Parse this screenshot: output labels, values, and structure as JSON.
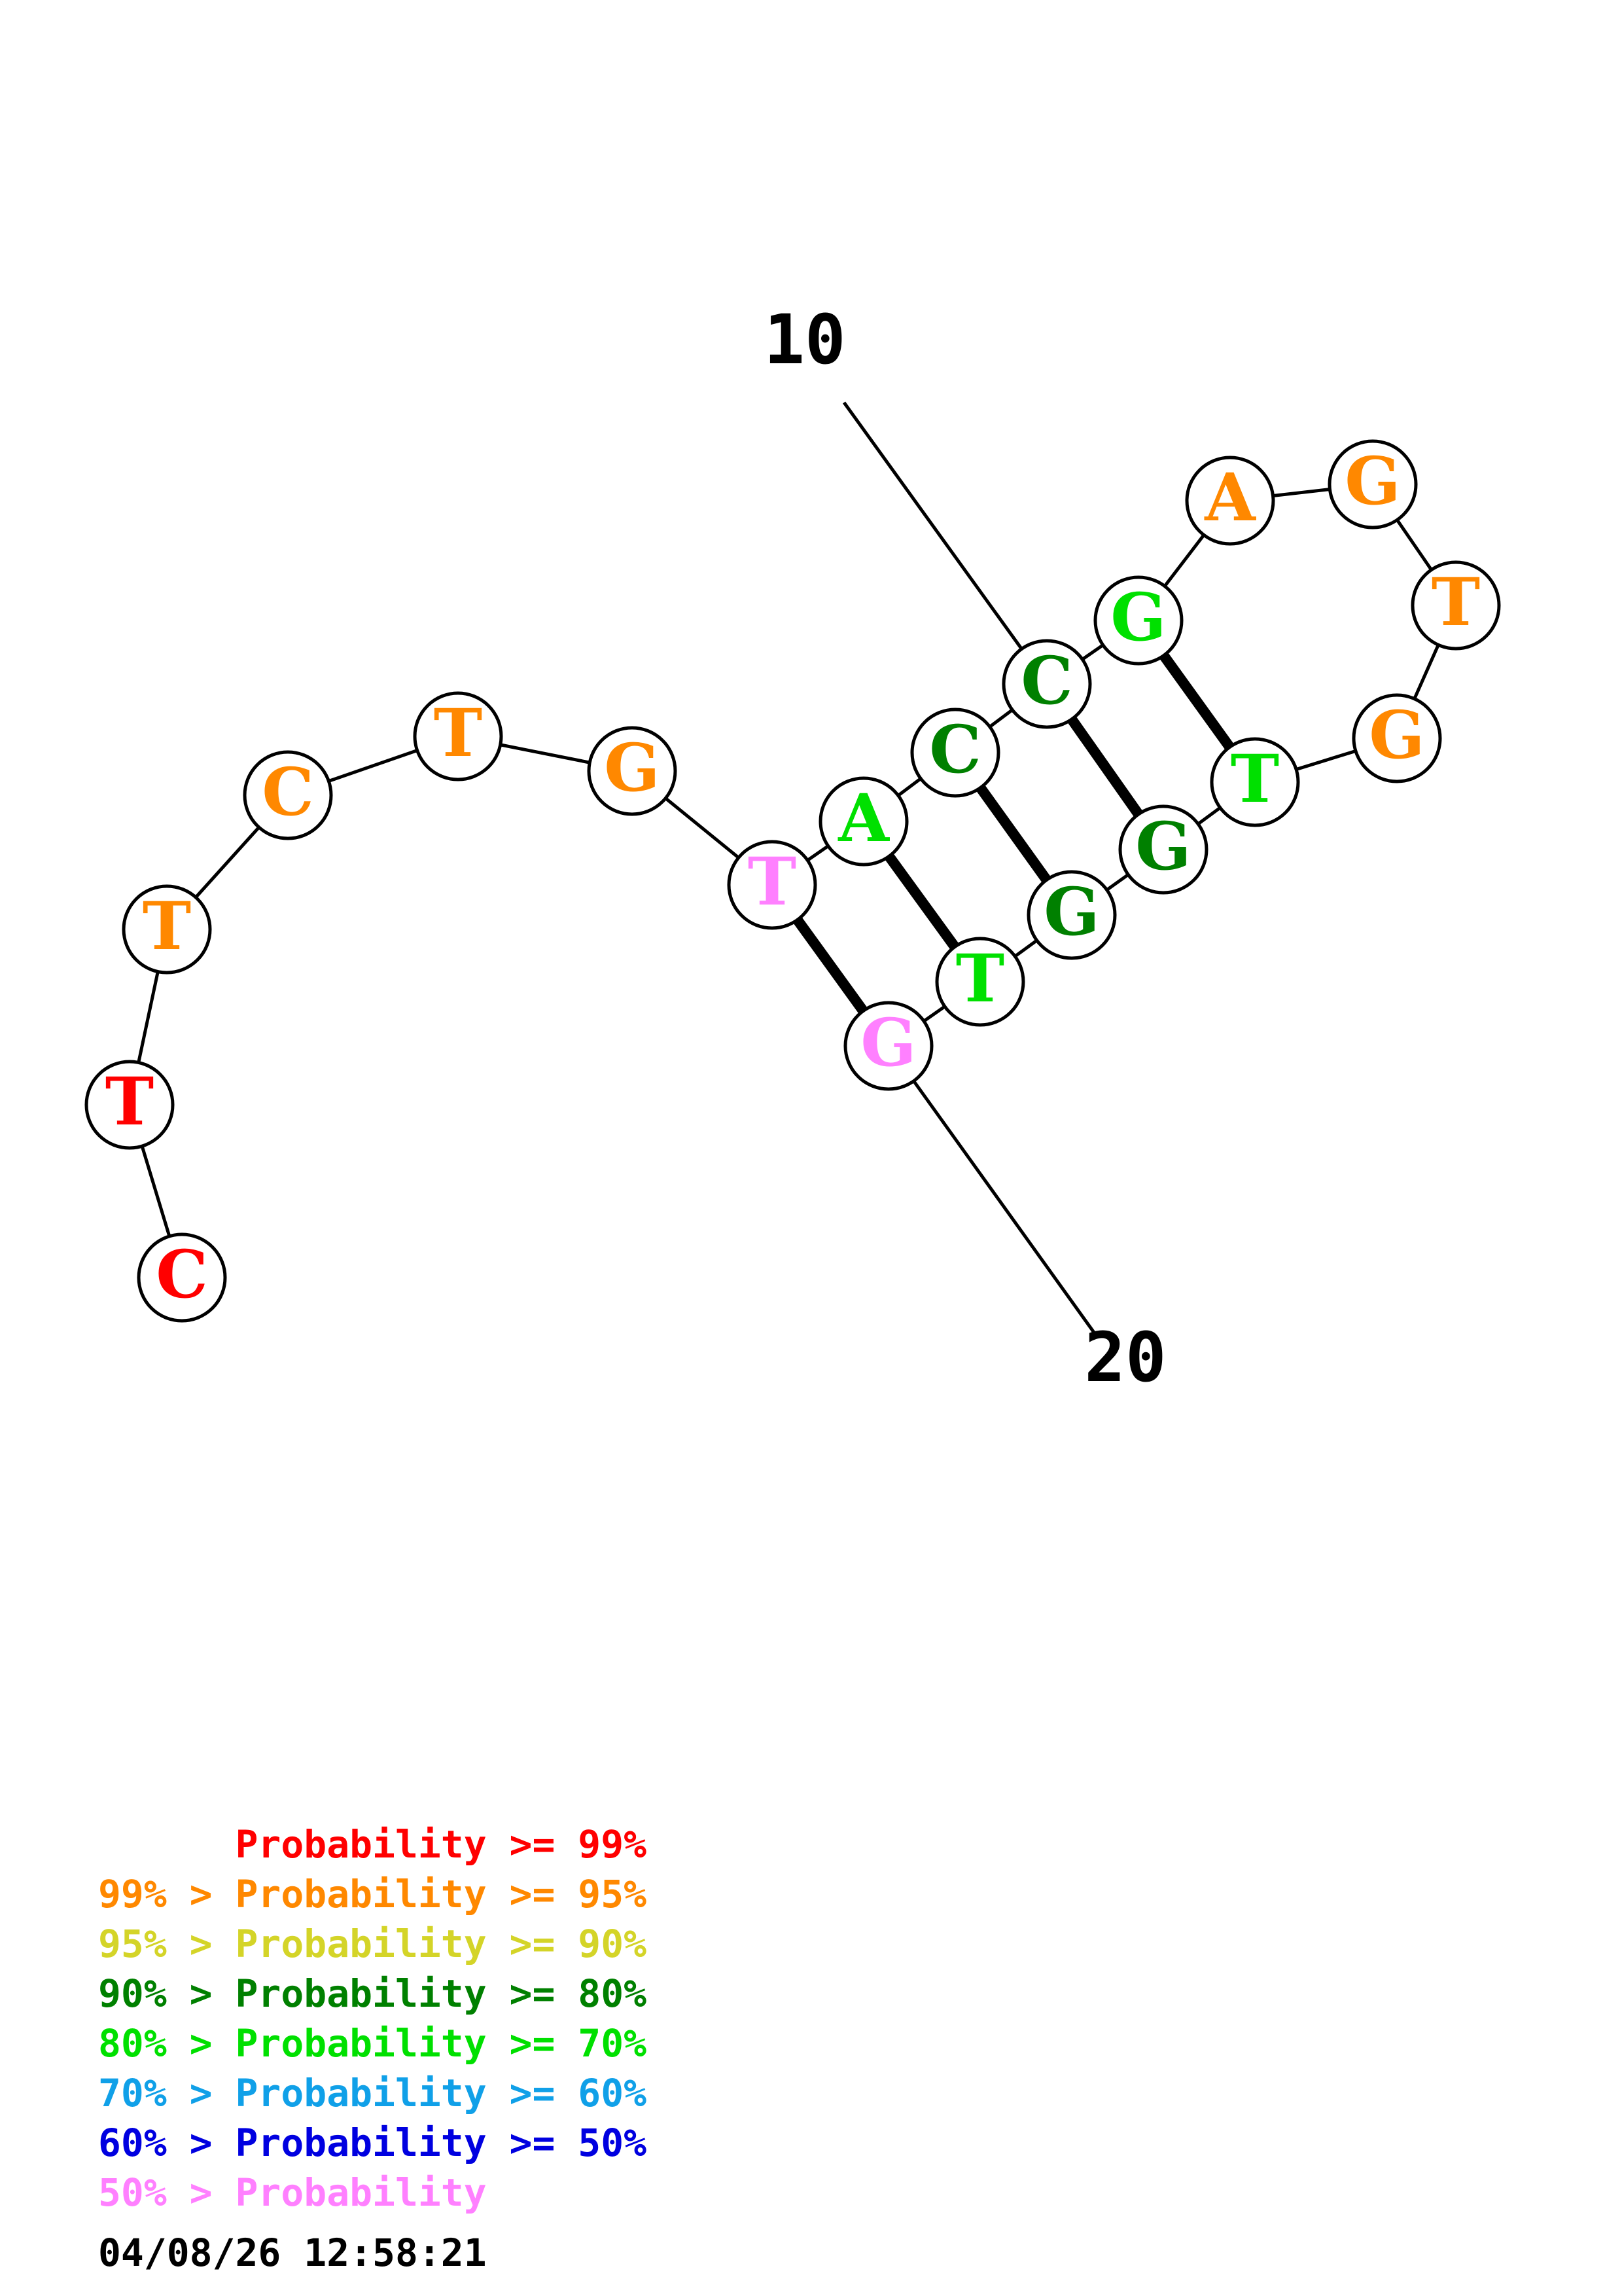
{
  "structure": {
    "bases": [
      {
        "letter": "C",
        "color": "#ff0000"
      },
      {
        "letter": "T",
        "color": "#ff0000"
      },
      {
        "letter": "T",
        "color": "#ff8800"
      },
      {
        "letter": "C",
        "color": "#ff8800"
      },
      {
        "letter": "T",
        "color": "#ff8800"
      },
      {
        "letter": "G",
        "color": "#ff8800"
      },
      {
        "letter": "T",
        "color": "#ff80ff"
      },
      {
        "letter": "A",
        "color": "#00e000"
      },
      {
        "letter": "C",
        "color": "#008000"
      },
      {
        "letter": "C",
        "color": "#008000"
      },
      {
        "letter": "G",
        "color": "#00e000"
      },
      {
        "letter": "A",
        "color": "#ff8800"
      },
      {
        "letter": "G",
        "color": "#ff8800"
      },
      {
        "letter": "T",
        "color": "#ff8800"
      },
      {
        "letter": "G",
        "color": "#ff8800"
      },
      {
        "letter": "T",
        "color": "#00e000"
      },
      {
        "letter": "G",
        "color": "#008000"
      },
      {
        "letter": "G",
        "color": "#008000"
      },
      {
        "letter": "T",
        "color": "#00e000"
      },
      {
        "letter": "G",
        "color": "#ff80ff"
      }
    ],
    "pairs": [
      [
        7,
        20
      ],
      [
        8,
        19
      ],
      [
        9,
        18
      ],
      [
        10,
        17
      ],
      [
        11,
        16
      ]
    ],
    "position_labels": [
      {
        "text": "10",
        "base": 10
      },
      {
        "text": "20",
        "base": 20
      }
    ]
  },
  "legend": [
    {
      "text": "      Probability >= 99%",
      "color": "#ff0000"
    },
    {
      "text": "99% > Probability >= 95%",
      "color": "#ff8800"
    },
    {
      "text": "95% > Probability >= 90%",
      "color": "#d4d428"
    },
    {
      "text": "90% > Probability >= 80%",
      "color": "#008000"
    },
    {
      "text": "80% > Probability >= 70%",
      "color": "#00e000"
    },
    {
      "text": "70% > Probability >= 60%",
      "color": "#10a0e8"
    },
    {
      "text": "60% > Probability >= 50%",
      "color": "#0000e0"
    },
    {
      "text": "50% > Probability",
      "color": "#ff80ff"
    }
  ],
  "timestamp": "04/08/26 12:58:21"
}
